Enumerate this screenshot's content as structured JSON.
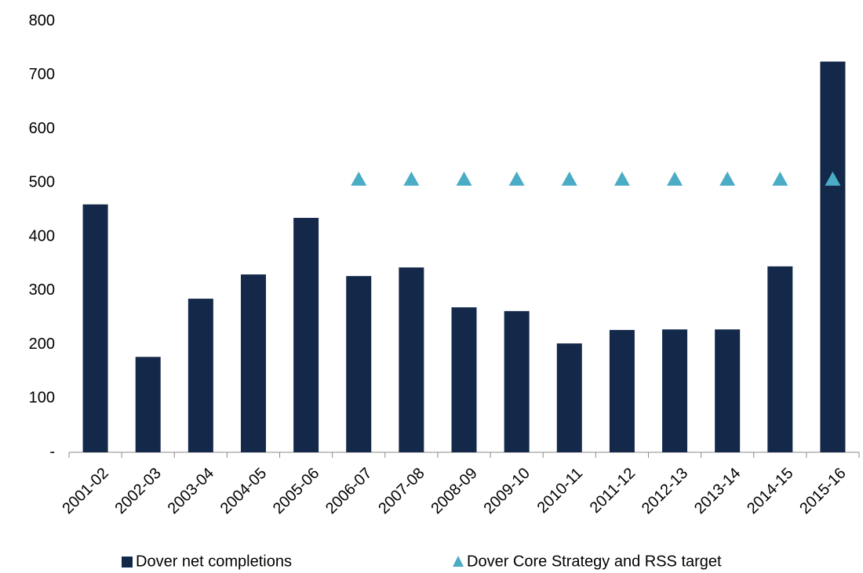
{
  "chart_data": {
    "type": "bar",
    "categories": [
      "2001-02",
      "2002-03",
      "2003-04",
      "2004-05",
      "2005-06",
      "2006-07",
      "2007-08",
      "2008-09",
      "2009-10",
      "2010-11",
      "2011-12",
      "2012-13",
      "2013-14",
      "2014-15",
      "2015-16"
    ],
    "series": [
      {
        "name": "Dover net completions",
        "type": "bar",
        "color": "#14284a",
        "values": [
          460,
          177,
          285,
          330,
          435,
          327,
          343,
          269,
          262,
          202,
          227,
          228,
          228,
          345,
          725
        ]
      },
      {
        "name": "Dover Core Strategy and RSS target",
        "type": "marker",
        "color": "#4bacc6",
        "values": [
          null,
          null,
          null,
          null,
          null,
          505,
          505,
          505,
          505,
          505,
          505,
          505,
          505,
          505,
          505
        ]
      }
    ],
    "ylim": [
      0,
      800
    ],
    "yticks": [
      {
        "value": 0,
        "label": "-"
      },
      100,
      200,
      300,
      400,
      500,
      600,
      700,
      800
    ],
    "grid": false,
    "legend": "bottom"
  }
}
